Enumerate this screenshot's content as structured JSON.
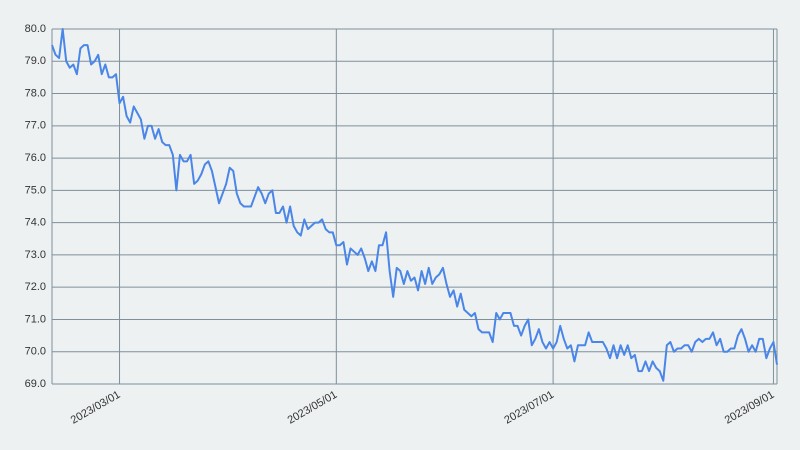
{
  "chart_data": {
    "type": "line",
    "x": [
      "2023/02/10",
      "2023/02/11",
      "2023/02/12",
      "2023/02/13",
      "2023/02/14",
      "2023/02/15",
      "2023/02/16",
      "2023/02/17",
      "2023/02/18",
      "2023/02/19",
      "2023/02/20",
      "2023/02/21",
      "2023/02/22",
      "2023/02/23",
      "2023/02/24",
      "2023/02/25",
      "2023/02/26",
      "2023/02/27",
      "2023/02/28",
      "2023/03/01",
      "2023/03/02",
      "2023/03/03",
      "2023/03/04",
      "2023/03/05",
      "2023/03/06",
      "2023/03/07",
      "2023/03/08",
      "2023/03/09",
      "2023/03/10",
      "2023/03/11",
      "2023/03/12",
      "2023/03/13",
      "2023/03/14",
      "2023/03/15",
      "2023/03/16",
      "2023/03/17",
      "2023/03/18",
      "2023/03/19",
      "2023/03/20",
      "2023/03/21",
      "2023/03/22",
      "2023/03/23",
      "2023/03/24",
      "2023/03/25",
      "2023/03/26",
      "2023/03/27",
      "2023/03/28",
      "2023/03/29",
      "2023/03/30",
      "2023/03/31",
      "2023/04/01",
      "2023/04/02",
      "2023/04/03",
      "2023/04/04",
      "2023/04/05",
      "2023/04/06",
      "2023/04/07",
      "2023/04/08",
      "2023/04/09",
      "2023/04/10",
      "2023/04/11",
      "2023/04/12",
      "2023/04/13",
      "2023/04/14",
      "2023/04/15",
      "2023/04/16",
      "2023/04/17",
      "2023/04/18",
      "2023/04/19",
      "2023/04/20",
      "2023/04/21",
      "2023/04/22",
      "2023/04/23",
      "2023/04/24",
      "2023/04/25",
      "2023/04/26",
      "2023/04/27",
      "2023/04/28",
      "2023/04/29",
      "2023/04/30",
      "2023/05/01",
      "2023/05/02",
      "2023/05/03",
      "2023/05/04",
      "2023/05/05",
      "2023/05/06",
      "2023/05/07",
      "2023/05/08",
      "2023/05/09",
      "2023/05/10",
      "2023/05/11",
      "2023/05/12",
      "2023/05/13",
      "2023/05/14",
      "2023/05/15",
      "2023/05/16",
      "2023/05/17",
      "2023/05/18",
      "2023/05/19",
      "2023/05/20",
      "2023/05/21",
      "2023/05/22",
      "2023/05/23",
      "2023/05/24",
      "2023/05/25",
      "2023/05/26",
      "2023/05/27",
      "2023/05/28",
      "2023/05/29",
      "2023/05/30",
      "2023/05/31",
      "2023/06/01",
      "2023/06/02",
      "2023/06/03",
      "2023/06/04",
      "2023/06/05",
      "2023/06/06",
      "2023/06/07",
      "2023/06/08",
      "2023/06/09",
      "2023/06/10",
      "2023/06/11",
      "2023/06/12",
      "2023/06/13",
      "2023/06/14",
      "2023/06/15",
      "2023/06/16",
      "2023/06/17",
      "2023/06/18",
      "2023/06/19",
      "2023/06/20",
      "2023/06/21",
      "2023/06/22",
      "2023/06/23",
      "2023/06/24",
      "2023/06/25",
      "2023/06/26",
      "2023/06/27",
      "2023/06/28",
      "2023/06/29",
      "2023/06/30",
      "2023/07/01",
      "2023/07/02",
      "2023/07/03",
      "2023/07/04",
      "2023/07/05",
      "2023/07/06",
      "2023/07/07",
      "2023/07/08",
      "2023/07/09",
      "2023/07/10",
      "2023/07/11",
      "2023/07/12",
      "2023/07/13",
      "2023/07/14",
      "2023/07/15",
      "2023/07/16",
      "2023/07/17",
      "2023/07/18",
      "2023/07/19",
      "2023/07/20",
      "2023/07/21",
      "2023/07/22",
      "2023/07/23",
      "2023/07/24",
      "2023/07/25",
      "2023/07/26",
      "2023/07/27",
      "2023/07/28",
      "2023/07/29",
      "2023/07/30",
      "2023/07/31",
      "2023/08/01",
      "2023/08/02",
      "2023/08/03",
      "2023/08/04",
      "2023/08/05",
      "2023/08/06",
      "2023/08/07",
      "2023/08/08",
      "2023/08/09",
      "2023/08/10",
      "2023/08/11",
      "2023/08/12",
      "2023/08/13",
      "2023/08/14",
      "2023/08/15",
      "2023/08/16",
      "2023/08/17",
      "2023/08/18",
      "2023/08/19",
      "2023/08/20",
      "2023/08/21",
      "2023/08/22",
      "2023/08/23",
      "2023/08/24",
      "2023/08/25",
      "2023/08/26",
      "2023/08/27",
      "2023/08/28",
      "2023/08/29",
      "2023/08/30",
      "2023/08/31",
      "2023/09/01",
      "2023/09/02"
    ],
    "values": [
      79.5,
      79.2,
      79.1,
      80.0,
      79.0,
      78.8,
      78.9,
      78.6,
      79.4,
      79.5,
      79.5,
      78.9,
      79.0,
      79.2,
      78.6,
      78.9,
      78.5,
      78.5,
      78.6,
      77.7,
      77.9,
      77.3,
      77.1,
      77.6,
      77.4,
      77.2,
      76.6,
      77.0,
      77.0,
      76.6,
      76.9,
      76.5,
      76.4,
      76.4,
      76.1,
      75.0,
      76.1,
      75.9,
      75.9,
      76.1,
      75.2,
      75.3,
      75.5,
      75.8,
      75.9,
      75.6,
      75.1,
      74.6,
      74.9,
      75.2,
      75.7,
      75.6,
      74.9,
      74.6,
      74.5,
      74.5,
      74.5,
      74.8,
      75.1,
      74.9,
      74.6,
      74.9,
      75.0,
      74.3,
      74.3,
      74.5,
      74.0,
      74.5,
      73.9,
      73.7,
      73.6,
      74.1,
      73.8,
      73.9,
      74.0,
      74.0,
      74.1,
      73.8,
      73.7,
      73.7,
      73.3,
      73.3,
      73.4,
      72.7,
      73.2,
      73.1,
      73.0,
      73.2,
      72.9,
      72.5,
      72.8,
      72.5,
      73.3,
      73.3,
      73.7,
      72.5,
      71.7,
      72.6,
      72.5,
      72.1,
      72.5,
      72.2,
      72.3,
      71.9,
      72.5,
      72.1,
      72.6,
      72.1,
      72.3,
      72.4,
      72.6,
      72.1,
      71.7,
      71.9,
      71.4,
      71.8,
      71.3,
      71.2,
      71.1,
      71.2,
      70.7,
      70.6,
      70.6,
      70.6,
      70.3,
      71.2,
      71.0,
      71.2,
      71.2,
      71.2,
      70.8,
      70.8,
      70.5,
      70.8,
      71.0,
      70.2,
      70.4,
      70.7,
      70.3,
      70.1,
      70.3,
      70.1,
      70.3,
      70.8,
      70.4,
      70.1,
      70.2,
      69.7,
      70.2,
      70.2,
      70.2,
      70.6,
      70.3,
      70.3,
      70.3,
      70.3,
      70.1,
      69.8,
      70.2,
      69.8,
      70.2,
      69.9,
      70.2,
      69.8,
      69.9,
      69.4,
      69.4,
      69.7,
      69.4,
      69.7,
      69.5,
      69.4,
      69.1,
      70.2,
      70.3,
      70.0,
      70.1,
      70.1,
      70.2,
      70.2,
      70.0,
      70.3,
      70.4,
      70.3,
      70.4,
      70.4,
      70.6,
      70.2,
      70.4,
      70.0,
      70.0,
      70.1,
      70.1,
      70.5,
      70.7,
      70.4,
      70.0,
      70.2,
      70.0,
      70.4,
      70.4,
      69.8,
      70.1,
      70.3,
      69.6
    ],
    "color": "#4a86e8",
    "xlim": [
      "2023/02/10",
      "2023/09/02"
    ],
    "xticks": [
      "2023/03/01",
      "2023/05/01",
      "2023/07/01",
      "2023/09/01"
    ],
    "ylim": [
      69,
      80
    ],
    "yticks": [
      {
        "value": 69,
        "label": "69.0"
      },
      {
        "value": 70,
        "label": "70.0"
      },
      {
        "value": 71,
        "label": "71.0"
      },
      {
        "value": 72,
        "label": "72.0"
      },
      {
        "value": 73,
        "label": "73.0"
      },
      {
        "value": 74,
        "label": "74.0"
      },
      {
        "value": 75,
        "label": "75.0"
      },
      {
        "value": 76,
        "label": "76.0"
      },
      {
        "value": 77,
        "label": "77.0"
      },
      {
        "value": 78,
        "label": "78.0"
      },
      {
        "value": 79,
        "label": "79.0"
      },
      {
        "value": 80,
        "label": "80.0"
      }
    ],
    "grid": true
  }
}
